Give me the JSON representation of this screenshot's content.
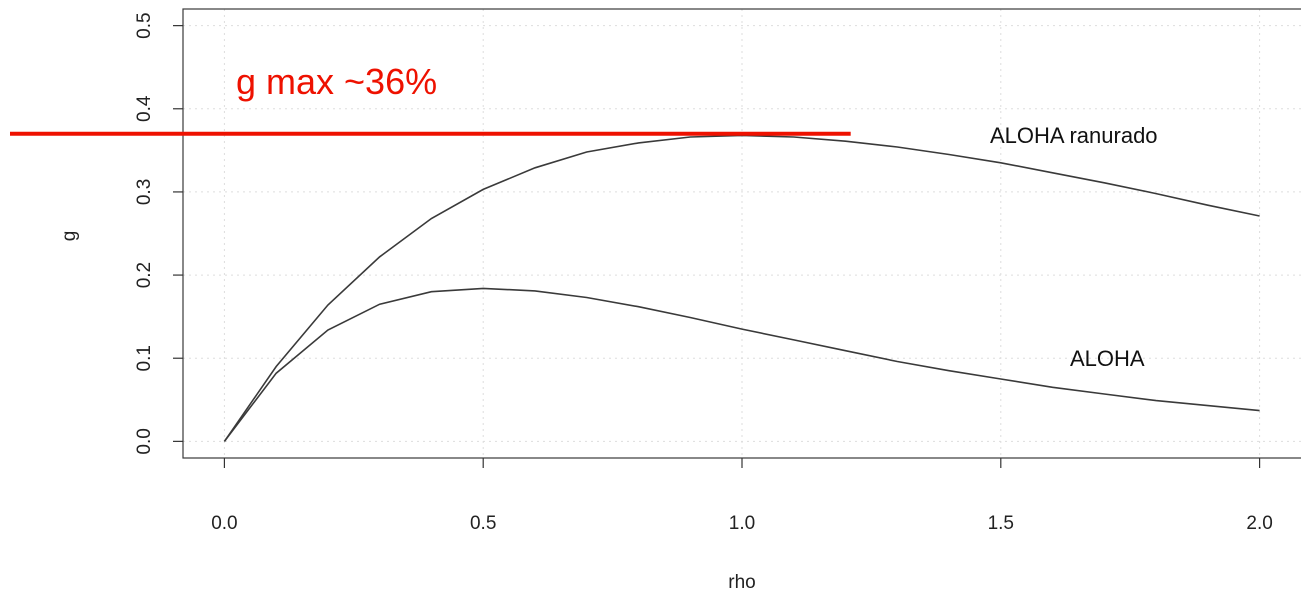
{
  "chart_data": {
    "type": "line",
    "xlabel": "rho",
    "ylabel": "g",
    "xlim": [
      -0.08,
      2.08
    ],
    "ylim": [
      -0.02,
      0.52
    ],
    "x_ticks": [
      0.0,
      0.5,
      1.0,
      1.5,
      2.0
    ],
    "x_tick_labels": [
      "0.0",
      "0.5",
      "1.0",
      "1.5",
      "2.0"
    ],
    "y_ticks": [
      0.0,
      0.1,
      0.2,
      0.3,
      0.4,
      0.5
    ],
    "y_tick_labels": [
      "0.0",
      "0.1",
      "0.2",
      "0.3",
      "0.4",
      "0.5"
    ],
    "grid": true,
    "series": [
      {
        "name": "ALOHA ranurado",
        "x": [
          0.0,
          0.1,
          0.2,
          0.3,
          0.4,
          0.5,
          0.6,
          0.7,
          0.8,
          0.9,
          1.0,
          1.1,
          1.2,
          1.3,
          1.4,
          1.5,
          1.6,
          1.7,
          1.8,
          1.9,
          2.0
        ],
        "y": [
          0.0,
          0.09,
          0.164,
          0.222,
          0.268,
          0.303,
          0.329,
          0.348,
          0.359,
          0.366,
          0.368,
          0.366,
          0.361,
          0.354,
          0.345,
          0.335,
          0.323,
          0.311,
          0.298,
          0.284,
          0.271
        ]
      },
      {
        "name": "ALOHA",
        "x": [
          0.0,
          0.1,
          0.2,
          0.3,
          0.4,
          0.5,
          0.6,
          0.7,
          0.8,
          0.9,
          1.0,
          1.1,
          1.2,
          1.3,
          1.4,
          1.5,
          1.6,
          1.7,
          1.8,
          1.9,
          2.0
        ],
        "y": [
          0.0,
          0.082,
          0.134,
          0.165,
          0.18,
          0.184,
          0.181,
          0.173,
          0.162,
          0.149,
          0.135,
          0.122,
          0.109,
          0.096,
          0.085,
          0.075,
          0.065,
          0.057,
          0.049,
          0.043,
          0.037
        ]
      }
    ],
    "annotations": [
      {
        "text": "g max ~36%",
        "color": "#ee1100",
        "y": 0.37,
        "x_range": [
          -0.08,
          1.21
        ]
      }
    ]
  }
}
